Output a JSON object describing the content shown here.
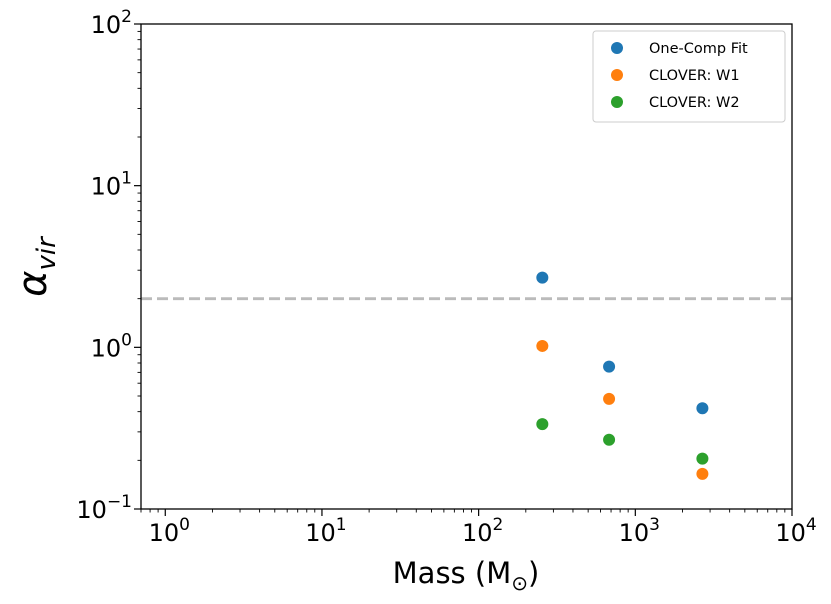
{
  "chart_data": {
    "type": "scatter",
    "xscale": "log",
    "yscale": "log",
    "xlim": [
      0.7,
      10000
    ],
    "ylim": [
      0.1,
      100
    ],
    "xticks": [
      {
        "base": "10",
        "exp": "0",
        "value": 1
      },
      {
        "base": "10",
        "exp": "1",
        "value": 10
      },
      {
        "base": "10",
        "exp": "2",
        "value": 100
      },
      {
        "base": "10",
        "exp": "3",
        "value": 1000
      },
      {
        "base": "10",
        "exp": "4",
        "value": 10000
      }
    ],
    "yticks": [
      {
        "base": "10",
        "exp": "−1",
        "value": 0.1
      },
      {
        "base": "10",
        "exp": "0",
        "value": 1
      },
      {
        "base": "10",
        "exp": "1",
        "value": 10
      },
      {
        "base": "10",
        "exp": "2",
        "value": 100
      }
    ],
    "xlabel": {
      "text": "Mass (M",
      "sub": "⊙",
      "close": ")"
    },
    "ylabel": {
      "symbol": "α",
      "sub": "vir"
    },
    "reference_line": {
      "y": 2.0,
      "style": "dashed",
      "color": "#bbbbbb"
    },
    "legend_position": "top-right",
    "series": [
      {
        "name": "One-Comp Fit",
        "color": "#1f77b4",
        "x": [
          255,
          680,
          2680
        ],
        "y": [
          2.7,
          0.76,
          0.42
        ]
      },
      {
        "name": "CLOVER: W1",
        "color": "#ff7f0e",
        "x": [
          255,
          680,
          2680
        ],
        "y": [
          1.02,
          0.48,
          0.165
        ]
      },
      {
        "name": "CLOVER: W2",
        "color": "#2ca02c",
        "x": [
          255,
          680,
          2680
        ],
        "y": [
          0.335,
          0.268,
          0.205
        ]
      }
    ]
  }
}
